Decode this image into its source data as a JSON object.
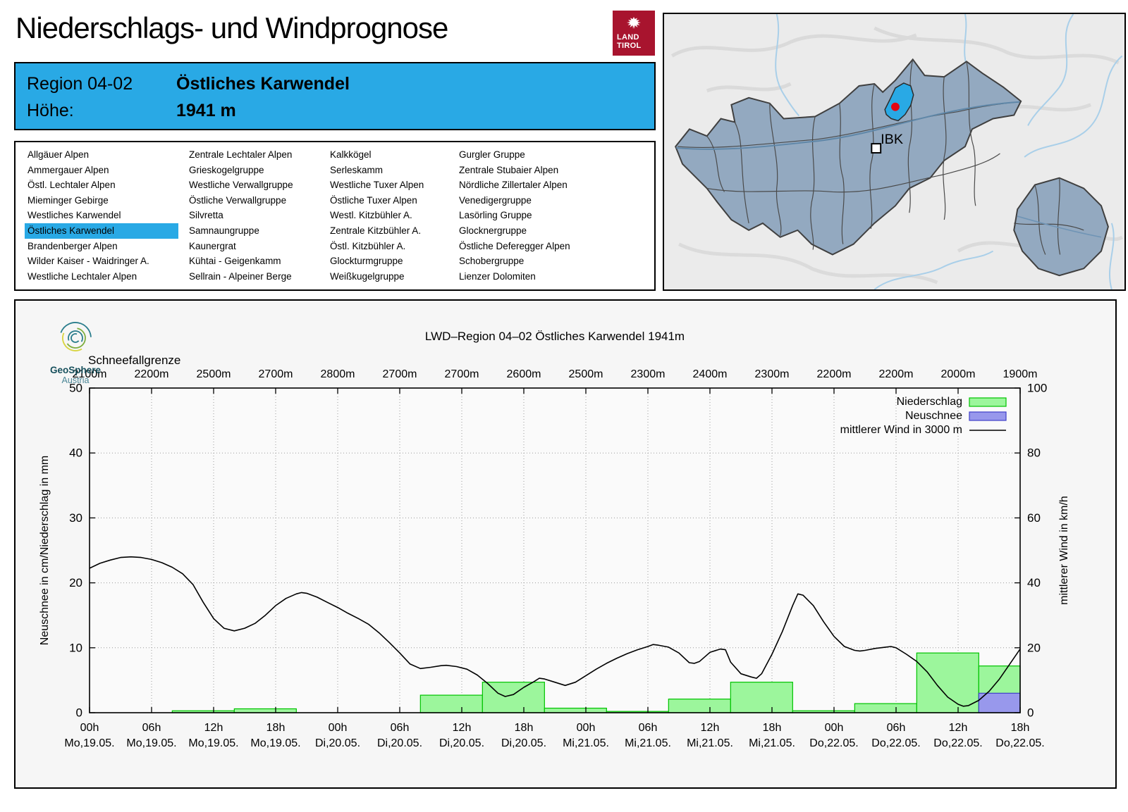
{
  "header": {
    "title": "Niederschlags- und Windprognose",
    "logo_line1": "LAND",
    "logo_line2": "TIROL",
    "logo_color": "#A8142E",
    "region_label": "Region 04-02",
    "region_name": "Östliches Karwendel",
    "hoehe_label": "Höhe:",
    "hoehe_value": "1941 m",
    "accent_color": "#29A9E5"
  },
  "region_list": {
    "selected": "Östliches Karwendel",
    "columns": [
      [
        "Allgäuer Alpen",
        "Ammergauer Alpen",
        "Östl. Lechtaler Alpen",
        "Mieminger Gebirge",
        "Westliches Karwendel",
        "Östliches Karwendel",
        "Brandenberger Alpen",
        "Wilder Kaiser - Waidringer A.",
        "Westliche Lechtaler Alpen"
      ],
      [
        "Zentrale Lechtaler Alpen",
        "Grieskogelgruppe",
        "Westliche Verwallgruppe",
        "Östliche Verwallgruppe",
        "Silvretta",
        "Samnaungruppe",
        "Kaunergrat",
        "Kühtai - Geigenkamm",
        "Sellrain - Alpeiner Berge"
      ],
      [
        "Kalkkögel",
        "Serleskamm",
        "Westliche Tuxer Alpen",
        "Östliche Tuxer Alpen",
        "Westl. Kitzbühler A.",
        "Zentrale Kitzbühler A.",
        "Östl. Kitzbühler A.",
        "Glockturmgruppe",
        "Weißkugelgruppe"
      ],
      [
        "Gurgler Gruppe",
        "Zentrale Stubaier Alpen",
        "Nördliche Zillertaler Alpen",
        "Venedigergruppe",
        "Lasörling Gruppe",
        "Glocknergruppe",
        "Östliche Deferegger Alpen",
        "Schobergruppe",
        "Lienzer Dolomiten"
      ]
    ]
  },
  "map": {
    "marker_label": "IBK",
    "highlight_color": "#29A9E5",
    "region_fill": "#93A9C0",
    "marker_dot_color": "#E30613"
  },
  "chart_data": {
    "type": "bar+line",
    "title": "LWD–Region 04–02 Östliches Karwendel 1941m",
    "branding": {
      "name": "GeoSphere",
      "sub": "Austria"
    },
    "top_axis": {
      "label": "Schneefallgrenze",
      "values": [
        "2100m",
        "2200m",
        "2500m",
        "2700m",
        "2800m",
        "2700m",
        "2700m",
        "2600m",
        "2500m",
        "2300m",
        "2400m",
        "2300m",
        "2200m",
        "2200m",
        "2000m",
        "1900m"
      ]
    },
    "x_range_hours": [
      0,
      90
    ],
    "x_tick_step_hours": 6,
    "x_ticks_hours": [
      "00h",
      "06h",
      "12h",
      "18h",
      "00h",
      "06h",
      "12h",
      "18h",
      "00h",
      "06h",
      "12h",
      "18h",
      "00h",
      "06h",
      "12h",
      "18h"
    ],
    "x_ticks_dates": [
      "Mo,19.05.",
      "Mo,19.05.",
      "Mo,19.05.",
      "Mo,19.05.",
      "Di,20.05.",
      "Di,20.05.",
      "Di,20.05.",
      "Di,20.05.",
      "Mi,21.05.",
      "Mi,21.05.",
      "Mi,21.05.",
      "Mi,21.05.",
      "Do,22.05.",
      "Do,22.05.",
      "Do,22.05.",
      "Do,22.05."
    ],
    "ylabel_left": "Neuschnee in cm/Niederschlag in mm",
    "ylim_left": [
      0,
      50
    ],
    "yticks_left": [
      0,
      10,
      20,
      30,
      40,
      50
    ],
    "ylabel_right": "mittlerer Wind in km/h",
    "ylim_right": [
      0,
      100
    ],
    "yticks_right": [
      0,
      20,
      40,
      60,
      80,
      100
    ],
    "grid": {
      "on": true,
      "color": "#999999"
    },
    "legend": {
      "position": "top-right",
      "entries": [
        {
          "label": "Niederschlag",
          "type": "box",
          "fill": "#9CF69C",
          "stroke": "#00C300"
        },
        {
          "label": "Neuschnee",
          "type": "box",
          "fill": "#9898EC",
          "stroke": "#4040C8"
        },
        {
          "label": "mittlerer Wind in 3000 m",
          "type": "line",
          "stroke": "#000000"
        }
      ]
    },
    "precipitation_mm_bars": [
      {
        "from_h": 8,
        "to_h": 14,
        "value": 0.3
      },
      {
        "from_h": 14,
        "to_h": 20,
        "value": 0.6
      },
      {
        "from_h": 32,
        "to_h": 38,
        "value": 2.7
      },
      {
        "from_h": 38,
        "to_h": 44,
        "value": 4.7
      },
      {
        "from_h": 44,
        "to_h": 50,
        "value": 0.7
      },
      {
        "from_h": 50,
        "to_h": 56,
        "value": 0.2
      },
      {
        "from_h": 56,
        "to_h": 62,
        "value": 2.1
      },
      {
        "from_h": 62,
        "to_h": 68,
        "value": 4.7
      },
      {
        "from_h": 68,
        "to_h": 74,
        "value": 0.3
      },
      {
        "from_h": 74,
        "to_h": 80,
        "value": 1.4
      },
      {
        "from_h": 80,
        "to_h": 86,
        "value": 9.2
      },
      {
        "from_h": 86,
        "to_h": 92,
        "value": 7.2
      }
    ],
    "new_snow_cm_bars": [
      {
        "from_h": 86,
        "to_h": 92,
        "value": 3.0
      }
    ],
    "wind_kmh_points": [
      [
        0,
        44.5
      ],
      [
        1,
        46
      ],
      [
        2,
        47
      ],
      [
        3,
        47.8
      ],
      [
        4,
        48
      ],
      [
        5,
        47.8
      ],
      [
        6,
        47.2
      ],
      [
        7,
        46.2
      ],
      [
        8,
        44.8
      ],
      [
        9,
        42.8
      ],
      [
        10,
        39.5
      ],
      [
        11,
        34
      ],
      [
        12,
        29
      ],
      [
        13,
        26
      ],
      [
        14,
        25.2
      ],
      [
        15,
        26
      ],
      [
        16,
        27.5
      ],
      [
        17,
        30
      ],
      [
        18,
        33
      ],
      [
        19,
        35.2
      ],
      [
        20,
        36.6
      ],
      [
        20.5,
        37
      ],
      [
        21,
        36.8
      ],
      [
        22,
        35.6
      ],
      [
        23,
        34
      ],
      [
        24,
        32.4
      ],
      [
        25,
        30.6
      ],
      [
        26,
        29
      ],
      [
        27,
        27.2
      ],
      [
        28,
        24.6
      ],
      [
        29,
        21.6
      ],
      [
        30,
        18.4
      ],
      [
        31,
        15
      ],
      [
        32,
        13.6
      ],
      [
        33,
        14
      ],
      [
        34,
        14.5
      ],
      [
        34.5,
        14.6
      ],
      [
        35.5,
        14.2
      ],
      [
        36.5,
        13.4
      ],
      [
        37.5,
        11.6
      ],
      [
        38.5,
        9
      ],
      [
        39.5,
        6
      ],
      [
        40.2,
        5
      ],
      [
        41,
        5.6
      ],
      [
        42,
        7.8
      ],
      [
        43,
        9.6
      ],
      [
        43.5,
        10.6
      ],
      [
        44,
        10.4
      ],
      [
        45,
        9.4
      ],
      [
        46,
        8.4
      ],
      [
        47,
        9.4
      ],
      [
        48,
        11.4
      ],
      [
        49,
        13.4
      ],
      [
        50,
        15.2
      ],
      [
        51,
        16.8
      ],
      [
        52,
        18.2
      ],
      [
        53,
        19.4
      ],
      [
        54,
        20.4
      ],
      [
        54.5,
        21
      ],
      [
        55,
        20.8
      ],
      [
        56,
        20.2
      ],
      [
        57,
        18.4
      ],
      [
        58,
        15.4
      ],
      [
        58.5,
        15.2
      ],
      [
        59,
        15.8
      ],
      [
        60,
        18.6
      ],
      [
        61,
        19.6
      ],
      [
        61.5,
        19.4
      ],
      [
        62,
        15.6
      ],
      [
        63,
        12
      ],
      [
        64,
        11
      ],
      [
        64.5,
        10.6
      ],
      [
        65,
        12
      ],
      [
        66,
        18
      ],
      [
        67,
        25
      ],
      [
        68,
        33
      ],
      [
        68.5,
        36.6
      ],
      [
        69,
        36.2
      ],
      [
        70,
        33
      ],
      [
        71,
        28
      ],
      [
        72,
        23.5
      ],
      [
        73,
        20.4
      ],
      [
        74,
        19.2
      ],
      [
        74.5,
        19
      ],
      [
        75,
        19.2
      ],
      [
        76,
        19.8
      ],
      [
        77,
        20.2
      ],
      [
        77.5,
        20.4
      ],
      [
        78,
        20
      ],
      [
        79,
        18
      ],
      [
        80,
        15.8
      ],
      [
        81,
        12.6
      ],
      [
        82,
        8.4
      ],
      [
        83,
        4.8
      ],
      [
        84,
        2.6
      ],
      [
        84.5,
        2
      ],
      [
        85,
        2.2
      ],
      [
        86,
        3.8
      ],
      [
        87,
        6.6
      ],
      [
        88,
        10.4
      ],
      [
        89,
        15
      ],
      [
        90,
        19.6
      ]
    ]
  }
}
